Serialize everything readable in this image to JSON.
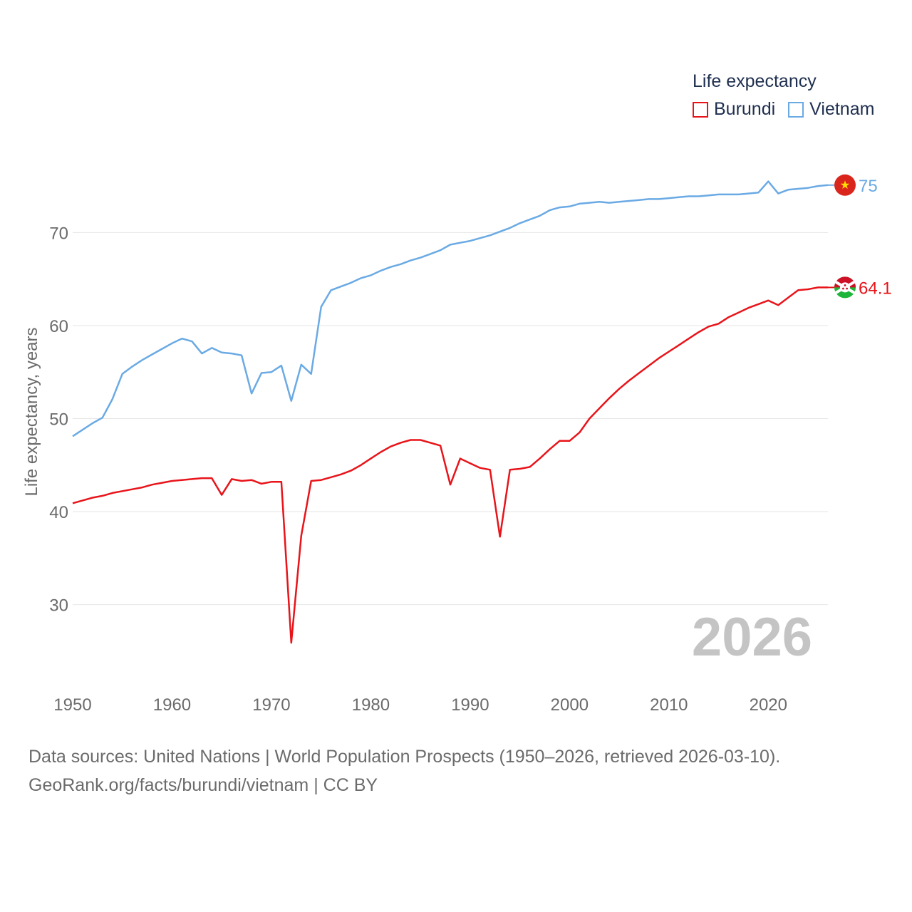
{
  "legend": {
    "title": "Life expectancy",
    "items": [
      {
        "name": "Burundi",
        "color": "#e8141a"
      },
      {
        "name": "Vietnam",
        "color": "#6aaae4"
      }
    ]
  },
  "source": {
    "line1": "Data sources: United Nations | World Population Prospects (1950–2026, retrieved 2026-03-10).",
    "line2": "GeoRank.org/facts/burundi/vietnam | CC BY"
  },
  "chart_data": {
    "type": "line",
    "title": "Life expectancy",
    "xlabel": "",
    "ylabel": "Life expectancy, years",
    "xlim": [
      1950,
      2026
    ],
    "ylim": [
      23,
      77
    ],
    "xticks": [
      1950,
      1960,
      1970,
      1980,
      1990,
      2000,
      2010,
      2020
    ],
    "yticks": [
      30,
      40,
      50,
      60,
      70
    ],
    "year_label": "2026",
    "grid": true,
    "series": [
      {
        "name": "Burundi",
        "color": "#e8141a",
        "end_label": "64.1",
        "flag": "burundi-flag-icon",
        "points": [
          [
            1950,
            40.9
          ],
          [
            1951,
            41.2
          ],
          [
            1952,
            41.5
          ],
          [
            1953,
            41.7
          ],
          [
            1954,
            42.0
          ],
          [
            1955,
            42.2
          ],
          [
            1956,
            42.4
          ],
          [
            1957,
            42.6
          ],
          [
            1958,
            42.9
          ],
          [
            1959,
            43.1
          ],
          [
            1960,
            43.3
          ],
          [
            1961,
            43.4
          ],
          [
            1962,
            43.5
          ],
          [
            1963,
            43.6
          ],
          [
            1964,
            43.6
          ],
          [
            1965,
            41.8
          ],
          [
            1966,
            43.5
          ],
          [
            1967,
            43.3
          ],
          [
            1968,
            43.4
          ],
          [
            1969,
            43.0
          ],
          [
            1970,
            43.2
          ],
          [
            1971,
            43.2
          ],
          [
            1972,
            25.9
          ],
          [
            1973,
            37.4
          ],
          [
            1974,
            43.3
          ],
          [
            1975,
            43.4
          ],
          [
            1976,
            43.7
          ],
          [
            1977,
            44.0
          ],
          [
            1978,
            44.4
          ],
          [
            1979,
            45.0
          ],
          [
            1980,
            45.7
          ],
          [
            1981,
            46.4
          ],
          [
            1982,
            47.0
          ],
          [
            1983,
            47.4
          ],
          [
            1984,
            47.7
          ],
          [
            1985,
            47.7
          ],
          [
            1986,
            47.4
          ],
          [
            1987,
            47.1
          ],
          [
            1988,
            42.9
          ],
          [
            1989,
            45.7
          ],
          [
            1990,
            45.2
          ],
          [
            1991,
            44.7
          ],
          [
            1992,
            44.5
          ],
          [
            1993,
            37.3
          ],
          [
            1994,
            44.5
          ],
          [
            1995,
            44.6
          ],
          [
            1996,
            44.8
          ],
          [
            1997,
            45.7
          ],
          [
            1998,
            46.7
          ],
          [
            1999,
            47.6
          ],
          [
            2000,
            47.6
          ],
          [
            2001,
            48.5
          ],
          [
            2002,
            50.0
          ],
          [
            2003,
            51.1
          ],
          [
            2004,
            52.2
          ],
          [
            2005,
            53.2
          ],
          [
            2006,
            54.1
          ],
          [
            2007,
            54.9
          ],
          [
            2008,
            55.7
          ],
          [
            2009,
            56.5
          ],
          [
            2010,
            57.2
          ],
          [
            2011,
            57.9
          ],
          [
            2012,
            58.6
          ],
          [
            2013,
            59.3
          ],
          [
            2014,
            59.9
          ],
          [
            2015,
            60.2
          ],
          [
            2016,
            60.9
          ],
          [
            2017,
            61.4
          ],
          [
            2018,
            61.9
          ],
          [
            2019,
            62.3
          ],
          [
            2020,
            62.7
          ],
          [
            2021,
            62.2
          ],
          [
            2022,
            63.0
          ],
          [
            2023,
            63.8
          ],
          [
            2024,
            63.9
          ],
          [
            2025,
            64.1
          ],
          [
            2026,
            64.1
          ]
        ]
      },
      {
        "name": "Vietnam",
        "color": "#6aaae4",
        "end_label": "75",
        "flag": "vietnam-flag-icon",
        "points": [
          [
            1950,
            48.1
          ],
          [
            1951,
            48.8
          ],
          [
            1952,
            49.5
          ],
          [
            1953,
            50.1
          ],
          [
            1954,
            52.1
          ],
          [
            1955,
            54.8
          ],
          [
            1956,
            55.6
          ],
          [
            1957,
            56.3
          ],
          [
            1958,
            56.9
          ],
          [
            1959,
            57.5
          ],
          [
            1960,
            58.1
          ],
          [
            1961,
            58.6
          ],
          [
            1962,
            58.3
          ],
          [
            1963,
            57.0
          ],
          [
            1964,
            57.6
          ],
          [
            1965,
            57.1
          ],
          [
            1966,
            57.0
          ],
          [
            1967,
            56.8
          ],
          [
            1968,
            52.7
          ],
          [
            1969,
            54.9
          ],
          [
            1970,
            55.0
          ],
          [
            1971,
            55.7
          ],
          [
            1972,
            51.9
          ],
          [
            1973,
            55.8
          ],
          [
            1974,
            54.8
          ],
          [
            1975,
            62.0
          ],
          [
            1976,
            63.8
          ],
          [
            1977,
            64.2
          ],
          [
            1978,
            64.6
          ],
          [
            1979,
            65.1
          ],
          [
            1980,
            65.4
          ],
          [
            1981,
            65.9
          ],
          [
            1982,
            66.3
          ],
          [
            1983,
            66.6
          ],
          [
            1984,
            67.0
          ],
          [
            1985,
            67.3
          ],
          [
            1986,
            67.7
          ],
          [
            1987,
            68.1
          ],
          [
            1988,
            68.7
          ],
          [
            1989,
            68.9
          ],
          [
            1990,
            69.1
          ],
          [
            1991,
            69.4
          ],
          [
            1992,
            69.7
          ],
          [
            1993,
            70.1
          ],
          [
            1994,
            70.5
          ],
          [
            1995,
            71.0
          ],
          [
            1996,
            71.4
          ],
          [
            1997,
            71.8
          ],
          [
            1998,
            72.4
          ],
          [
            1999,
            72.7
          ],
          [
            2000,
            72.8
          ],
          [
            2001,
            73.1
          ],
          [
            2002,
            73.2
          ],
          [
            2003,
            73.3
          ],
          [
            2004,
            73.2
          ],
          [
            2005,
            73.3
          ],
          [
            2006,
            73.4
          ],
          [
            2007,
            73.5
          ],
          [
            2008,
            73.6
          ],
          [
            2009,
            73.6
          ],
          [
            2010,
            73.7
          ],
          [
            2011,
            73.8
          ],
          [
            2012,
            73.9
          ],
          [
            2013,
            73.9
          ],
          [
            2014,
            74.0
          ],
          [
            2015,
            74.1
          ],
          [
            2016,
            74.1
          ],
          [
            2017,
            74.1
          ],
          [
            2018,
            74.2
          ],
          [
            2019,
            74.3
          ],
          [
            2020,
            75.5
          ],
          [
            2021,
            74.2
          ],
          [
            2022,
            74.6
          ],
          [
            2023,
            74.7
          ],
          [
            2024,
            74.8
          ],
          [
            2025,
            75.0
          ],
          [
            2026,
            75.1
          ]
        ]
      }
    ]
  }
}
